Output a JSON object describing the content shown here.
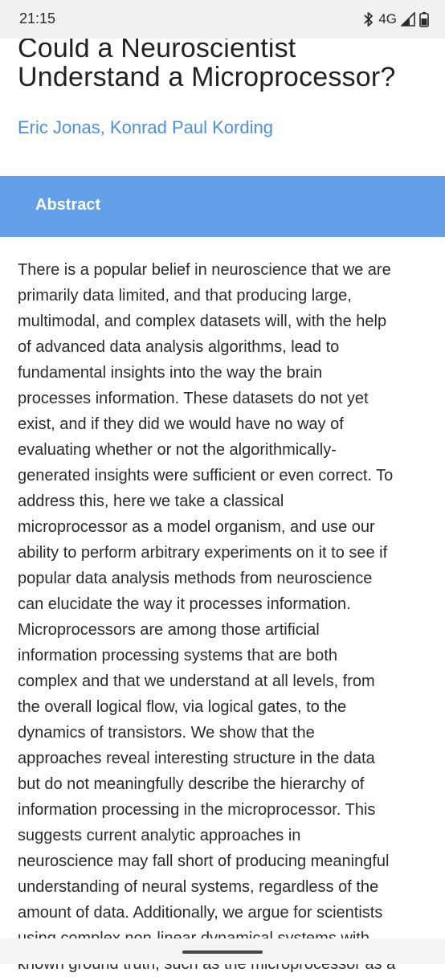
{
  "status_bar": {
    "time": "21:15",
    "network": "4G",
    "icons": [
      "bluetooth-icon",
      "signal-icon",
      "battery-icon"
    ]
  },
  "article": {
    "title": "Could a Neuroscientist Understand a Microprocessor?",
    "authors": "Eric Jonas, Konrad Paul Kording",
    "abstract_label": "Abstract",
    "abstract_lines": [
      "There is a popular belief in neuroscience that we are",
      "primarily data limited, and that producing large,",
      "multimodal, and complex datasets will, with the help",
      "of advanced data analysis algorithms, lead to",
      "fundamental insights into the way the brain",
      "processes information. These datasets do not yet",
      "exist, and if they did we would have no way of",
      "evaluating whether or not the algorithmically-",
      "generated insights were sufficient or even correct. To",
      "address this, here we take a classical",
      "microprocessor as a model organism, and use our",
      "ability to perform arbitrary experiments on it to see if",
      "popular data analysis methods from neuroscience",
      "can elucidate the way it processes information.",
      "Microprocessors are among those artificial",
      "information processing systems that are both",
      "complex and that we understand at all levels, from",
      "the overall logical flow, via logical gates, to the",
      "dynamics of transistors. We show that the",
      "approaches reveal interesting structure in the data",
      "but do not meaningfully describe the hierarchy of",
      "information processing in the microprocessor. This",
      "suggests current analytic approaches in",
      "neuroscience may fall short of producing meaningful",
      "understanding of neural systems, regardless of the",
      "amount of data. Additionally, we argue for scientists",
      "using complex non-linear dynamical systems with",
      "known ground truth, such as the microprocessor as a"
    ]
  },
  "colors": {
    "accent": "#4a90e2",
    "abstract_bar": "#63a0e9",
    "status_bar_bg": "#f1f1f1"
  }
}
